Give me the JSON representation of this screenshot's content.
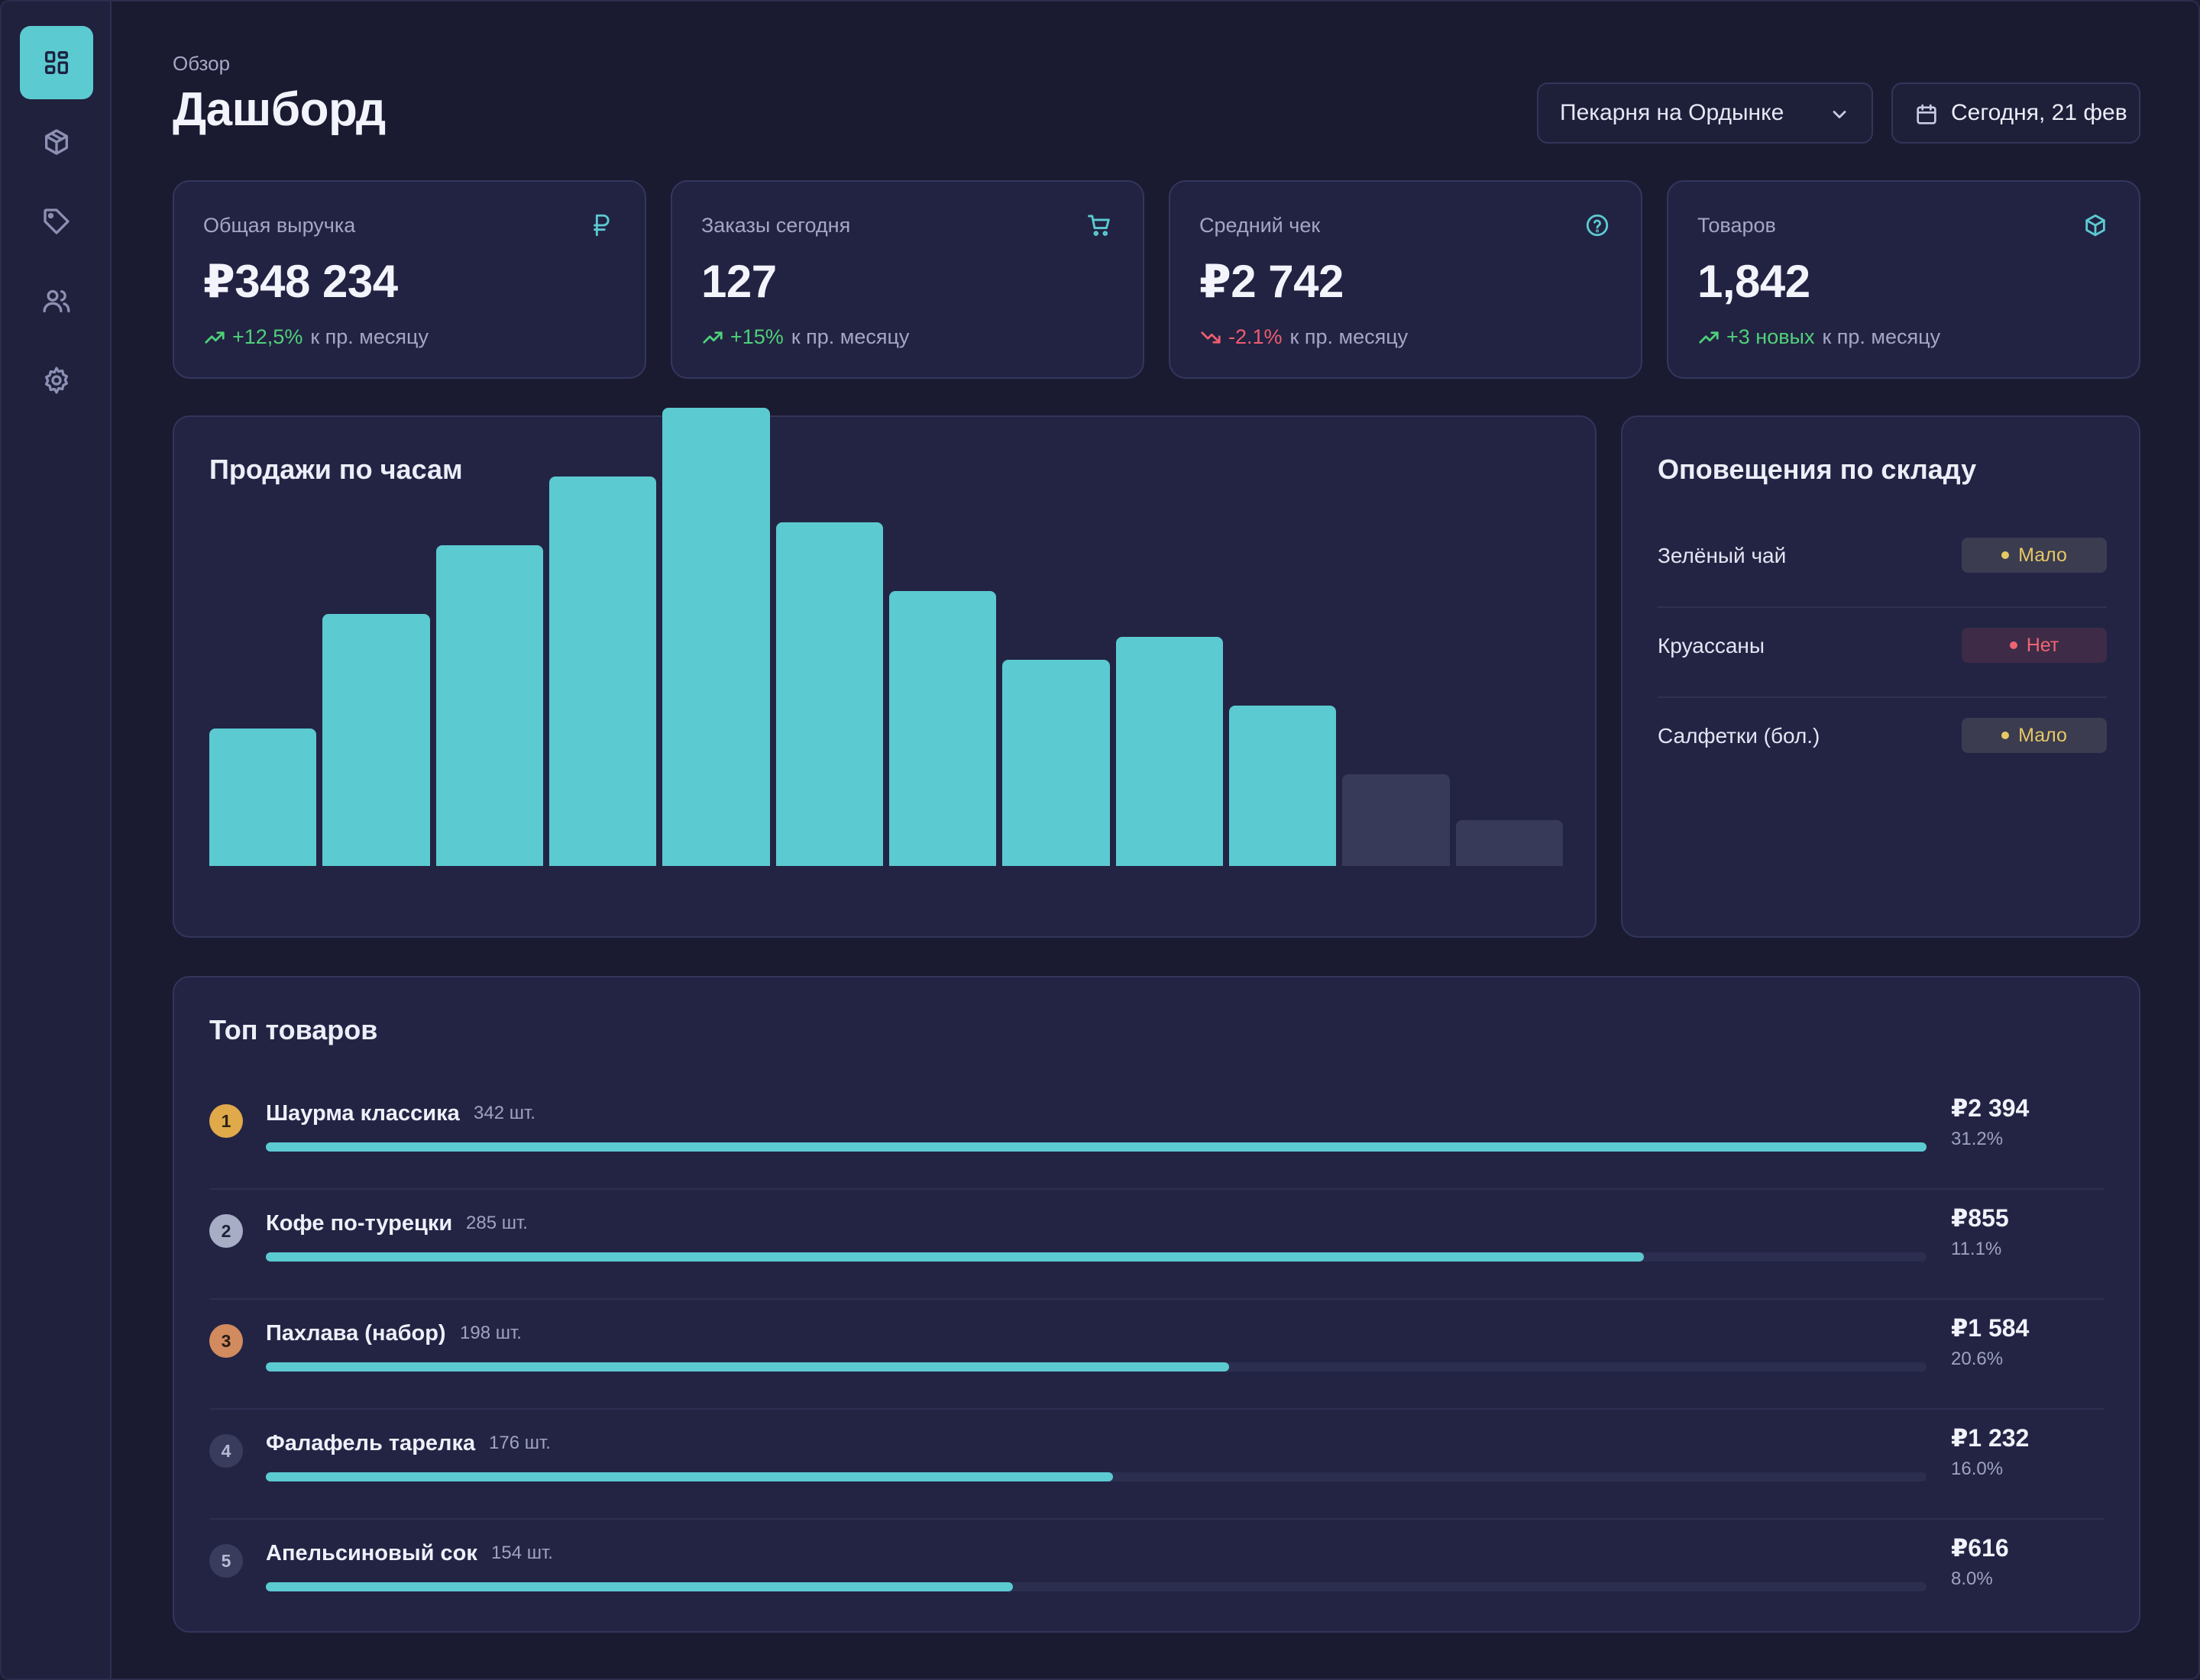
{
  "header": {
    "breadcrumb": "Обзор",
    "title": "Дашборд",
    "store_select": "Пекарня на Ордынке",
    "date_button": "Сегодня, 21 фев"
  },
  "sidebar": {
    "items": [
      {
        "icon": "grid-icon",
        "active": true
      },
      {
        "icon": "box-icon",
        "active": false
      },
      {
        "icon": "tag-icon",
        "active": false
      },
      {
        "icon": "users-icon",
        "active": false
      },
      {
        "icon": "gear-icon",
        "active": false
      }
    ]
  },
  "kpis": [
    {
      "label": "Общая выручка",
      "value": "₽348 234",
      "delta": "+12,5%",
      "delta_dir": "up",
      "suffix": "к пр. месяцу",
      "icon": "ruble-icon"
    },
    {
      "label": "Заказы сегодня",
      "value": "127",
      "delta": "+15%",
      "delta_dir": "up",
      "suffix": "к пр. месяцу",
      "icon": "cart-icon"
    },
    {
      "label": "Средний чек",
      "value": "₽2 742",
      "delta": "-2.1%",
      "delta_dir": "down",
      "suffix": "к пр. месяцу",
      "icon": "help-circle-icon"
    },
    {
      "label": "Товаров",
      "value": "1,842",
      "delta": "+3 новых",
      "delta_dir": "up",
      "suffix": "к пр. месяцу",
      "icon": "box-icon"
    }
  ],
  "sales_chart": {
    "title": "Продажи по часам"
  },
  "chart_data": {
    "type": "bar",
    "title": "Продажи по часам",
    "values": [
      30,
      55,
      70,
      85,
      100,
      75,
      60,
      45,
      50,
      35,
      20,
      10
    ],
    "highlighted": [
      true,
      true,
      true,
      true,
      true,
      true,
      true,
      true,
      true,
      true,
      false,
      false
    ],
    "ylim": [
      0,
      100
    ],
    "grid": false,
    "colors": {
      "active": "#5ccad1",
      "inactive": "#383a5a"
    }
  },
  "alerts": {
    "title": "Оповещения по складу",
    "items": [
      {
        "name": "Зелёный чай",
        "status": "Мало",
        "level": "low"
      },
      {
        "name": "Круассаны",
        "status": "Нет",
        "level": "none"
      },
      {
        "name": "Салфетки (бол.)",
        "status": "Мало",
        "level": "low"
      }
    ]
  },
  "top_products": {
    "title": "Топ товаров",
    "items": [
      {
        "rank": "1",
        "name": "Шаурма классика",
        "qty": "342 шт.",
        "revenue": "₽2 394",
        "share": "31.2%",
        "progress": 1.0
      },
      {
        "rank": "2",
        "name": "Кофе по-турецки",
        "qty": "285 шт.",
        "revenue": "₽855",
        "share": "11.1%",
        "progress": 0.83
      },
      {
        "rank": "3",
        "name": "Пахлава (набор)",
        "qty": "198 шт.",
        "revenue": "₽1 584",
        "share": "20.6%",
        "progress": 0.58
      },
      {
        "rank": "4",
        "name": "Фалафель тарелка",
        "qty": "176 шт.",
        "revenue": "₽1 232",
        "share": "16.0%",
        "progress": 0.51
      },
      {
        "rank": "5",
        "name": "Апельсиновый сок",
        "qty": "154 шт.",
        "revenue": "₽616",
        "share": "8.0%",
        "progress": 0.45
      }
    ]
  },
  "colors": {
    "accent": "#5ccad1",
    "positive": "#4fd17a",
    "negative": "#ef5d6f",
    "warning": "#e7c865"
  }
}
